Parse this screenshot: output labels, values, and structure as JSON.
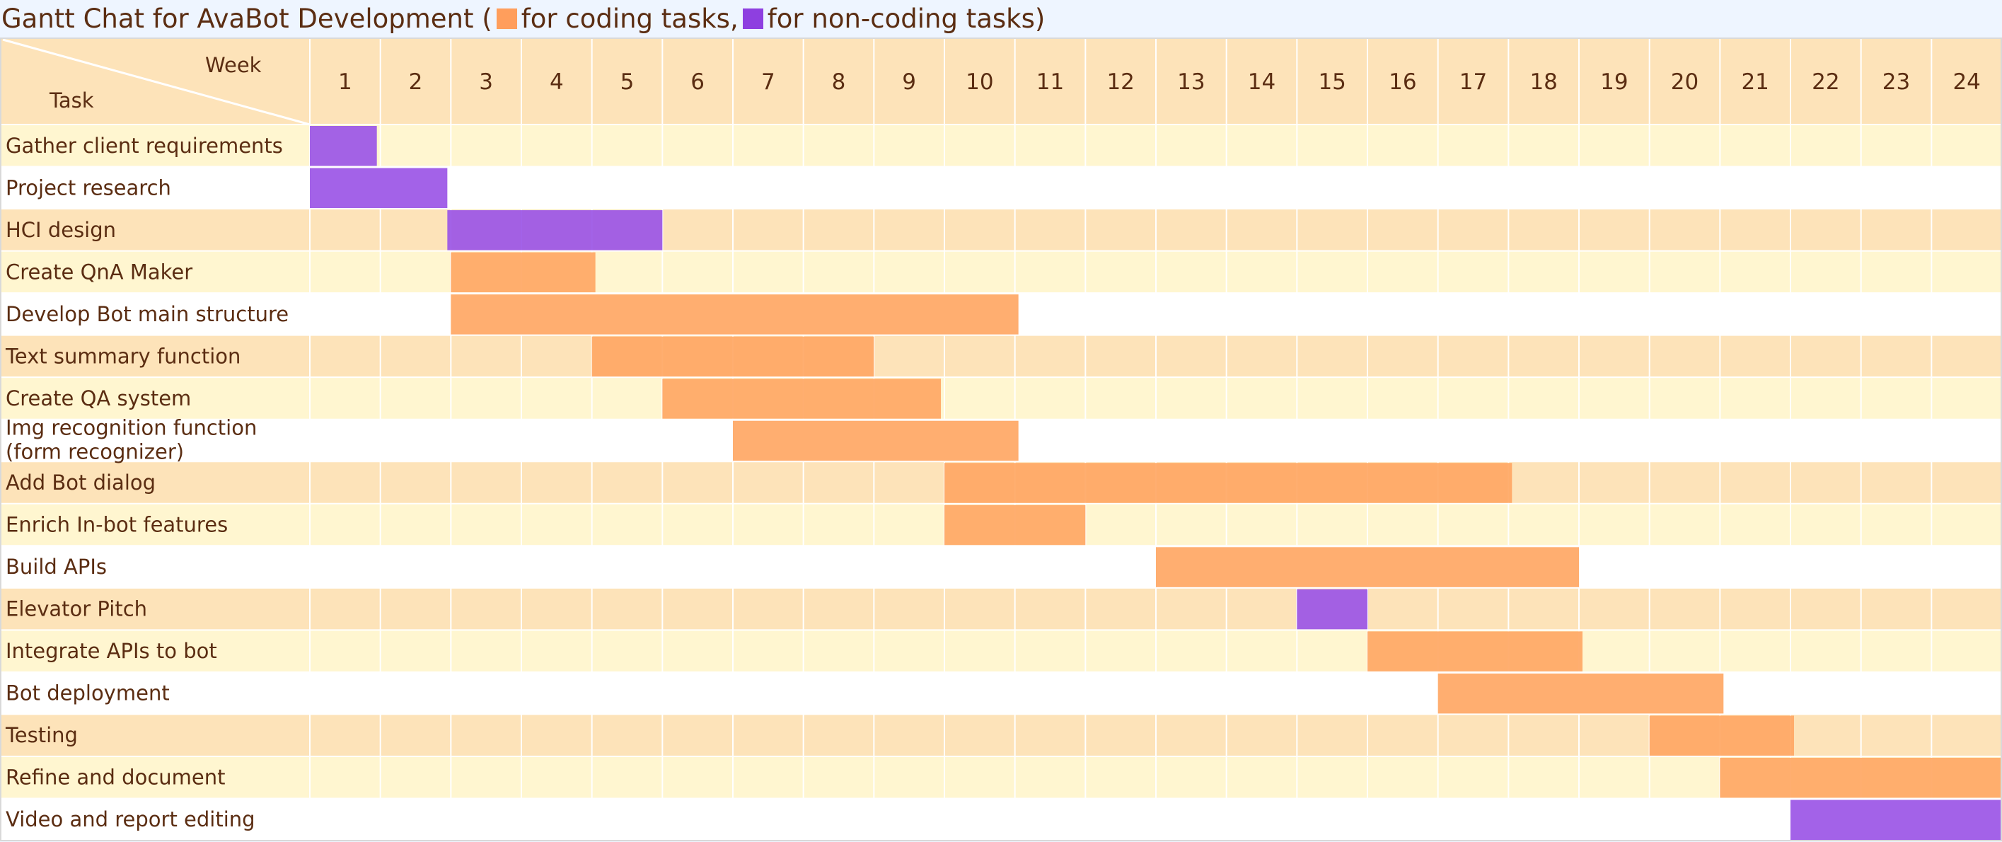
{
  "header": {
    "title_prefix": "Gantt Chat for AvaBot Development (",
    "legend_coding": "for coding tasks,",
    "legend_noncoding": "for non-coding tasks)",
    "corner_week": "Week",
    "corner_task": "Task"
  },
  "colors": {
    "coding": "#ffa764",
    "noncoding": "#9b55e6",
    "coding_legend": "#ff9e5c",
    "noncoding_legend": "#8e3fe0",
    "header_row": "#fde3b9",
    "row_peach": "#fde3b9",
    "row_cream": "#fff6d0",
    "row_white": "#ffffff",
    "text": "#5b2d12"
  },
  "chart_data": {
    "type": "gantt",
    "title": "Gantt Chat for AvaBot Development ( for coding tasks, for non-coding tasks)",
    "x_label": "Week",
    "y_label": "Task",
    "weeks": [
      "1",
      "2",
      "3",
      "4",
      "5",
      "6",
      "7",
      "8",
      "9",
      "10",
      "11",
      "12",
      "13",
      "14",
      "15",
      "16",
      "17",
      "18",
      "19",
      "20",
      "21",
      "22",
      "23",
      "24"
    ],
    "legend": [
      {
        "name": "for coding tasks",
        "kind": "coding"
      },
      {
        "name": "for non-coding tasks",
        "kind": "noncoding"
      }
    ],
    "tasks": [
      {
        "lines": [
          "Gather client requirements"
        ],
        "start": 1,
        "end": 1.95,
        "kind": "noncoding"
      },
      {
        "lines": [
          "Project research"
        ],
        "start": 1,
        "end": 2.95,
        "kind": "noncoding"
      },
      {
        "lines": [
          "HCI design"
        ],
        "start": 2.95,
        "end": 6.0,
        "kind": "noncoding"
      },
      {
        "lines": [
          "Create QnA Maker"
        ],
        "start": 3,
        "end": 5.05,
        "kind": "coding"
      },
      {
        "lines": [
          "Develop Bot main structure"
        ],
        "start": 3,
        "end": 11.05,
        "kind": "coding"
      },
      {
        "lines": [
          "Text summary function"
        ],
        "start": 5,
        "end": 9.0,
        "kind": "coding"
      },
      {
        "lines": [
          "Create QA system"
        ],
        "start": 6,
        "end": 9.95,
        "kind": "coding"
      },
      {
        "lines": [
          "Img recognition function",
          "(form recognizer)"
        ],
        "start": 7,
        "end": 11.05,
        "kind": "coding"
      },
      {
        "lines": [
          "Add Bot dialog"
        ],
        "start": 10,
        "end": 18.05,
        "kind": "coding"
      },
      {
        "lines": [
          "Enrich In-bot features"
        ],
        "start": 10,
        "end": 12.0,
        "kind": "coding"
      },
      {
        "lines": [
          "Build APIs"
        ],
        "start": 13,
        "end": 19.0,
        "kind": "coding"
      },
      {
        "lines": [
          "Elevator Pitch"
        ],
        "start": 15,
        "end": 16.0,
        "kind": "noncoding"
      },
      {
        "lines": [
          "Integrate APIs to bot"
        ],
        "start": 16,
        "end": 19.05,
        "kind": "coding"
      },
      {
        "lines": [
          "Bot deployment"
        ],
        "start": 17,
        "end": 21.05,
        "kind": "coding"
      },
      {
        "lines": [
          "Testing"
        ],
        "start": 20,
        "end": 22.05,
        "kind": "coding"
      },
      {
        "lines": [
          "Refine and document"
        ],
        "start": 21,
        "end": 25,
        "kind": "coding"
      },
      {
        "lines": [
          "Video and report editing"
        ],
        "start": 22,
        "end": 25,
        "kind": "noncoding"
      }
    ],
    "row_bands": [
      "cream",
      "white",
      "peach",
      "cream",
      "white",
      "peach",
      "cream",
      "white",
      "peach",
      "cream",
      "white",
      "peach",
      "cream",
      "white",
      "peach",
      "cream",
      "white"
    ]
  }
}
